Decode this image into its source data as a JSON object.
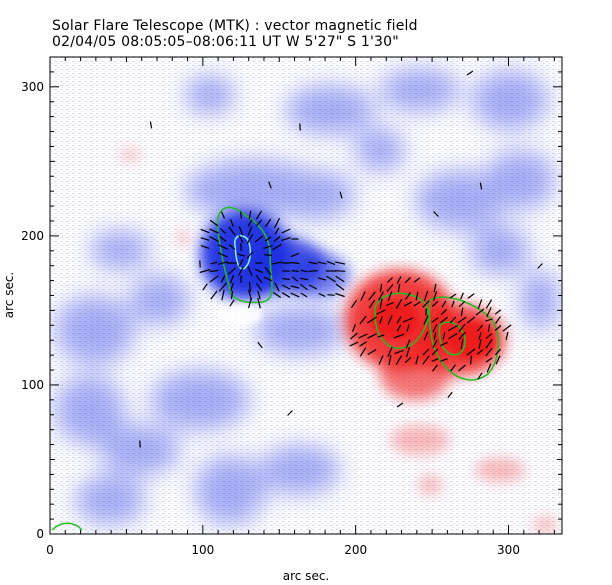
{
  "header": {
    "title": "Solar Flare Telescope (MTK) : vector magnetic field",
    "subtitle": "02/04/05   08:05:05–08:06:11 UT      W 5'27\"   S 1'30\""
  },
  "plot": {
    "xlabel": "arc sec.",
    "ylabel": "arc sec.",
    "xlim": [
      0,
      335
    ],
    "ylim": [
      0,
      320
    ],
    "xticks": [
      0,
      100,
      200,
      300
    ],
    "yticks": [
      0,
      100,
      200,
      300
    ],
    "colors": {
      "negative_polarity": "#1f2fe0",
      "positive_polarity": "#ee1f1f",
      "contour": "#22bb22",
      "vector": "#000000",
      "background": "#ffffff"
    },
    "icons": {
      "field_vectors": "short-line-segment",
      "contours": "closed-curve"
    }
  }
}
